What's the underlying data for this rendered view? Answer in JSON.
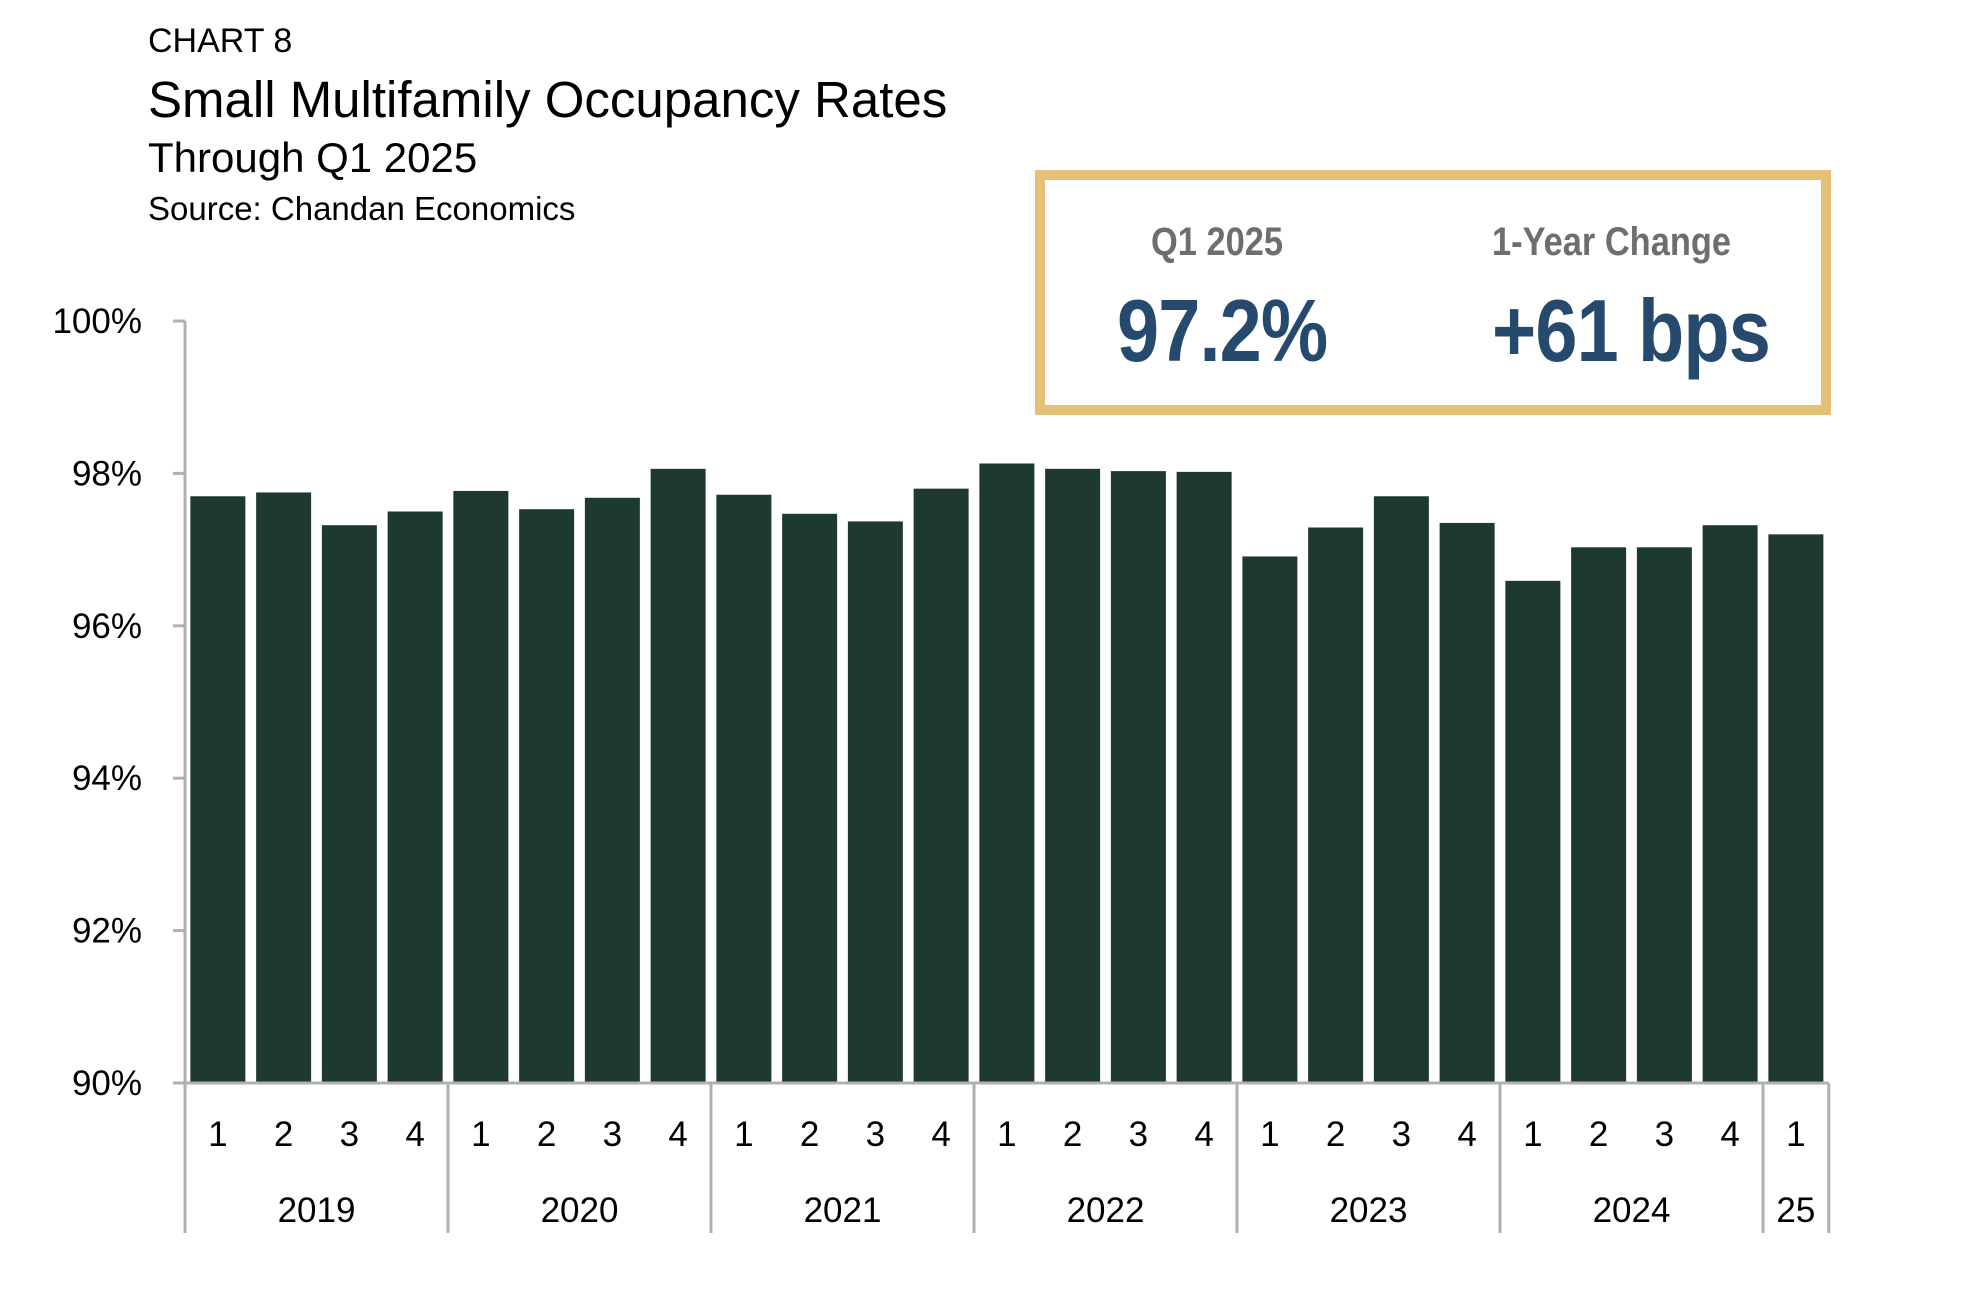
{
  "header": {
    "label": "CHART 8",
    "title": "Small Multifamily Occupancy Rates",
    "subtitle": "Through Q1 2025",
    "source": "Source: Chandan Economics"
  },
  "kpis": [
    {
      "label": "Q1 2025",
      "value": "97.2%"
    },
    {
      "label": "1-Year Change",
      "value": "+61 bps"
    }
  ],
  "colors": {
    "bar": "#1e3a30",
    "kpi_border": "#e5c178",
    "kpi_value": "#264a6e",
    "kpi_label": "#6e6e6e",
    "axis": "#b0b0b0"
  },
  "chart_data": {
    "type": "bar",
    "title": "Small Multifamily Occupancy Rates",
    "subtitle": "Through Q1 2025",
    "ylim": [
      90,
      100
    ],
    "yticks": [
      90,
      92,
      94,
      96,
      98,
      100
    ],
    "ytick_labels": [
      "90%",
      "92%",
      "94%",
      "96%",
      "98%",
      "100%"
    ],
    "grid": false,
    "legend": "none",
    "quarters": [
      "1",
      "2",
      "3",
      "4",
      "1",
      "2",
      "3",
      "4",
      "1",
      "2",
      "3",
      "4",
      "1",
      "2",
      "3",
      "4",
      "1",
      "2",
      "3",
      "4",
      "1",
      "2",
      "3",
      "4",
      "1"
    ],
    "years": [
      {
        "label": "2019",
        "count": 4
      },
      {
        "label": "2020",
        "count": 4
      },
      {
        "label": "2021",
        "count": 4
      },
      {
        "label": "2022",
        "count": 4
      },
      {
        "label": "2023",
        "count": 4
      },
      {
        "label": "2024",
        "count": 4
      },
      {
        "label": "25",
        "count": 1
      }
    ],
    "values": [
      97.7,
      97.75,
      97.32,
      97.5,
      97.77,
      97.53,
      97.68,
      98.06,
      97.72,
      97.47,
      97.37,
      97.8,
      98.13,
      98.06,
      98.03,
      98.02,
      96.91,
      97.29,
      97.7,
      97.35,
      96.59,
      97.03,
      97.03,
      97.32,
      97.2
    ]
  }
}
